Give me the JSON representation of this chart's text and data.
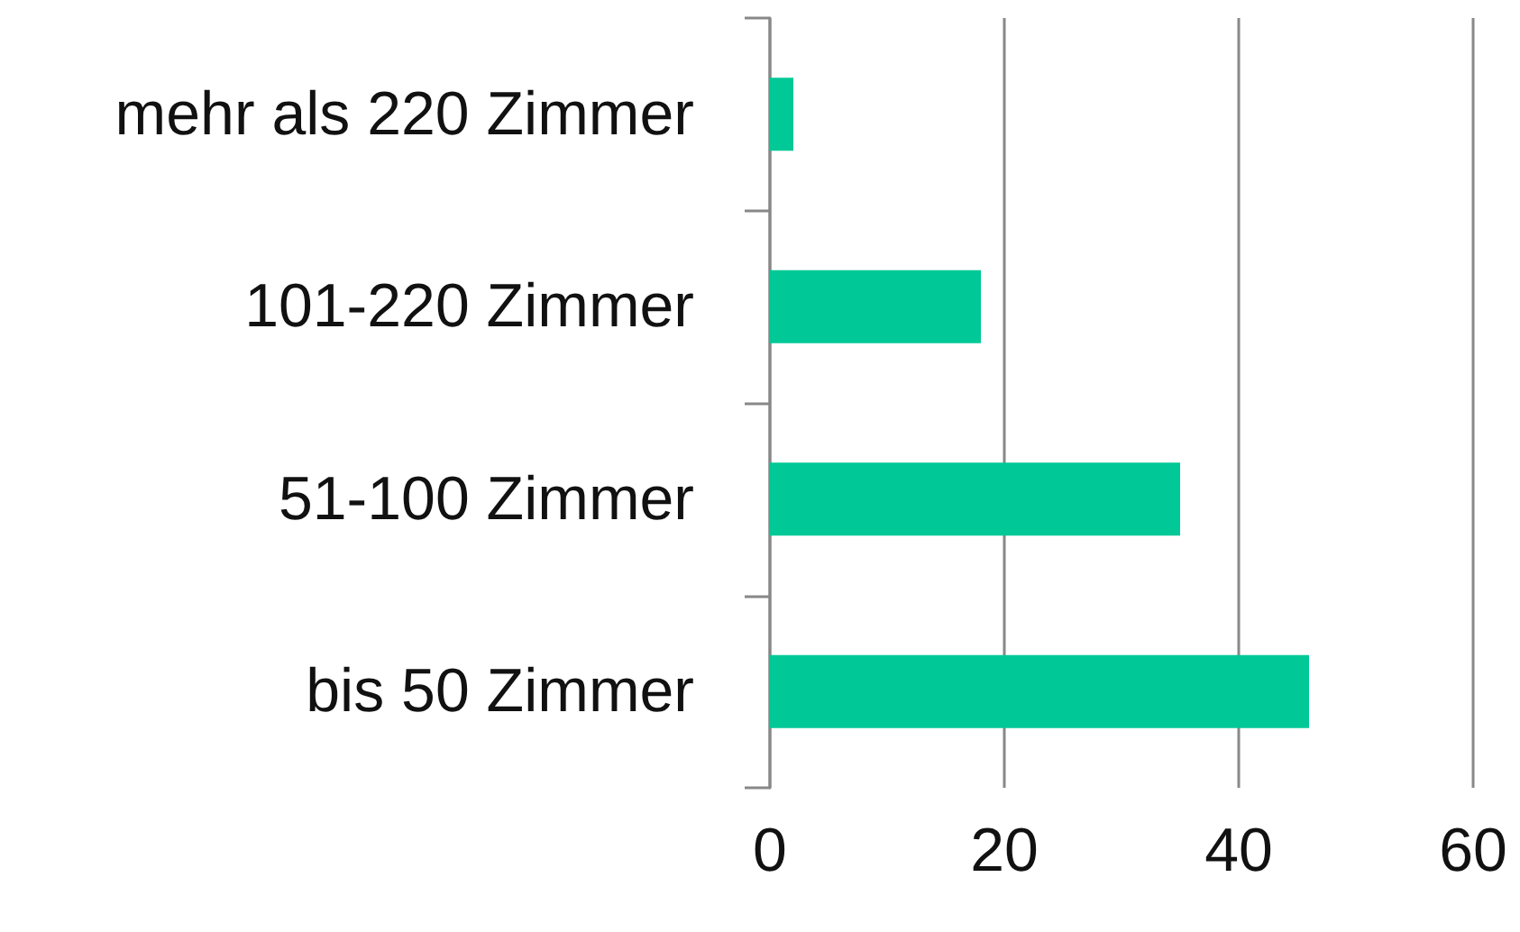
{
  "chart_data": {
    "type": "bar",
    "orientation": "horizontal",
    "categories": [
      "mehr als 220 Zimmer",
      "101-220 Zimmer",
      "51-100 Zimmer",
      "bis 50 Zimmer"
    ],
    "values": [
      2,
      18,
      35,
      46
    ],
    "color": "#00c896",
    "xlim": [
      0,
      60
    ],
    "xticks": [
      0,
      20,
      40,
      60
    ],
    "grid": "x"
  }
}
